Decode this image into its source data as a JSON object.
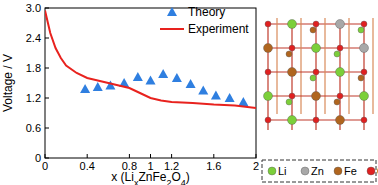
{
  "chart_data": {
    "type": "line",
    "x_label": "x (LixZnFe2O4)",
    "y_label": "Voltage / V",
    "xlim": [
      0,
      2
    ],
    "xticks": [
      0,
      0.4,
      0.8,
      1,
      1.2,
      1.6,
      2
    ],
    "ylim": [
      0,
      3
    ],
    "yticks": [
      0,
      0.6,
      1.2,
      1.8,
      2.4,
      {
        "value": 3,
        "label": "3.0"
      }
    ],
    "legend": "upper right",
    "series": [
      {
        "name": "Theory",
        "type": "scatter",
        "marker": "triangle",
        "color": "#2f7fe0",
        "x": [
          0.38,
          0.5,
          0.62,
          0.75,
          0.88,
          1.0,
          1.12,
          1.25,
          1.38,
          1.5,
          1.62,
          1.75,
          1.88
        ],
        "values": [
          1.38,
          1.42,
          1.45,
          1.5,
          1.62,
          1.55,
          1.68,
          1.6,
          1.48,
          1.35,
          1.25,
          1.2,
          1.12
        ]
      },
      {
        "name": "Experiment",
        "type": "line",
        "line_style": "solid",
        "color": "#e8221e",
        "x": [
          0,
          0.05,
          0.1,
          0.15,
          0.2,
          0.3,
          0.4,
          0.5,
          0.6,
          0.7,
          0.8,
          0.9,
          1.0,
          1.1,
          1.2,
          1.4,
          1.6,
          1.8,
          2.0
        ],
        "values": [
          2.95,
          2.5,
          2.2,
          2.0,
          1.85,
          1.7,
          1.6,
          1.55,
          1.5,
          1.45,
          1.4,
          1.3,
          1.2,
          1.15,
          1.12,
          1.1,
          1.07,
          1.05,
          1.0
        ]
      }
    ],
    "annotations": [
      {
        "text": "Li",
        "color": "#7ccf3a"
      },
      {
        "text": "Zn",
        "color": "#a8a8a8"
      },
      {
        "text": "Fe",
        "color": "#b0651e"
      },
      {
        "text": "O",
        "color": "#e02020"
      }
    ]
  }
}
